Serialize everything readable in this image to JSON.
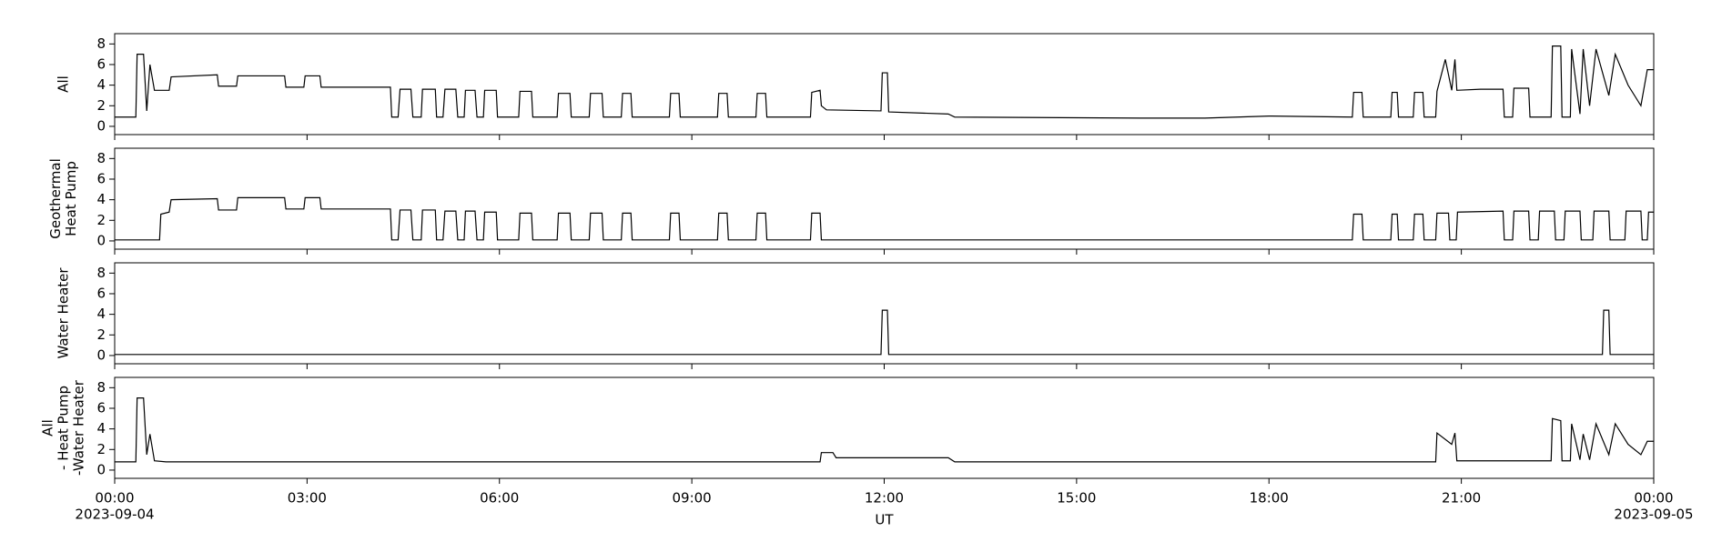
{
  "chart_data": [
    {
      "type": "line",
      "ylabel": [
        "All"
      ],
      "color": "#000000",
      "ylim": [
        -0.8,
        9
      ],
      "yticks": [
        0,
        2,
        4,
        6,
        8
      ],
      "xlim": [
        0,
        24
      ],
      "x": [
        0,
        0.33,
        0.35,
        0.45,
        0.5,
        0.55,
        0.62,
        0.85,
        0.88,
        1.6,
        1.62,
        1.9,
        1.92,
        2.65,
        2.67,
        2.95,
        2.97,
        3.2,
        3.22,
        4.3,
        4.32,
        4.42,
        4.45,
        4.62,
        4.65,
        4.78,
        4.8,
        5.0,
        5.02,
        5.12,
        5.15,
        5.32,
        5.35,
        5.45,
        5.47,
        5.62,
        5.65,
        5.75,
        5.77,
        5.95,
        5.97,
        6.3,
        6.32,
        6.5,
        6.52,
        6.9,
        6.92,
        7.1,
        7.12,
        7.4,
        7.42,
        7.6,
        7.62,
        7.9,
        7.92,
        8.05,
        8.07,
        8.65,
        8.67,
        8.8,
        8.82,
        9.4,
        9.42,
        9.55,
        9.57,
        10.0,
        10.02,
        10.15,
        10.17,
        10.85,
        10.87,
        11.0,
        11.02,
        11.1,
        11.95,
        11.97,
        12.05,
        12.07,
        13.0,
        13.1,
        16,
        17,
        18,
        19.3,
        19.32,
        19.45,
        19.47,
        19.9,
        19.92,
        20.0,
        20.02,
        20.25,
        20.27,
        20.4,
        20.42,
        20.6,
        20.62,
        20.75,
        20.85,
        20.9,
        20.93,
        21.3,
        21.65,
        21.67,
        21.8,
        21.82,
        22.05,
        22.07,
        22.4,
        22.42,
        22.55,
        22.57,
        22.7,
        22.72,
        22.85,
        22.9,
        23.0,
        23.1,
        23.3,
        23.4,
        23.6,
        23.8,
        23.9,
        24
      ],
      "values": [
        0.9,
        0.9,
        7,
        7,
        1.5,
        6,
        3.5,
        3.5,
        4.8,
        5,
        3.9,
        3.9,
        4.9,
        4.9,
        3.8,
        3.8,
        4.9,
        4.9,
        3.8,
        3.8,
        0.9,
        0.9,
        3.6,
        3.6,
        0.9,
        0.9,
        3.6,
        3.6,
        0.9,
        0.9,
        3.6,
        3.6,
        0.9,
        0.9,
        3.5,
        3.5,
        0.9,
        0.9,
        3.5,
        3.5,
        0.9,
        0.9,
        3.4,
        3.4,
        0.9,
        0.9,
        3.2,
        3.2,
        0.9,
        0.9,
        3.2,
        3.2,
        0.9,
        0.9,
        3.2,
        3.2,
        0.9,
        0.9,
        3.2,
        3.2,
        0.9,
        0.9,
        3.2,
        3.2,
        0.9,
        0.9,
        3.2,
        3.2,
        0.9,
        0.9,
        3.3,
        3.5,
        2,
        1.6,
        1.5,
        5.2,
        5.2,
        1.4,
        1.2,
        0.9,
        0.8,
        0.8,
        1,
        0.9,
        3.3,
        3.3,
        0.9,
        0.9,
        3.3,
        3.3,
        0.9,
        0.9,
        3.3,
        3.3,
        0.9,
        0.9,
        3.4,
        6.5,
        3.5,
        6.5,
        3.5,
        3.6,
        3.6,
        0.9,
        0.9,
        3.7,
        3.7,
        0.9,
        0.9,
        7.8,
        7.8,
        0.9,
        0.9,
        7.5,
        1.2,
        7.5,
        2,
        7.5,
        3,
        7,
        4,
        2,
        5.5,
        5.5
      ]
    },
    {
      "type": "line",
      "ylabel": [
        "Geothermal",
        "Heat Pump"
      ],
      "color": "#000000",
      "ylim": [
        -0.8,
        9
      ],
      "yticks": [
        0,
        2,
        4,
        6,
        8
      ],
      "xlim": [
        0,
        24
      ],
      "x": [
        0,
        0.7,
        0.72,
        0.85,
        0.88,
        1.6,
        1.62,
        1.9,
        1.92,
        2.65,
        2.67,
        2.95,
        2.97,
        3.2,
        3.22,
        4.3,
        4.32,
        4.42,
        4.45,
        4.62,
        4.65,
        4.78,
        4.8,
        5.0,
        5.02,
        5.12,
        5.15,
        5.32,
        5.35,
        5.45,
        5.47,
        5.62,
        5.65,
        5.75,
        5.77,
        5.95,
        5.97,
        6.3,
        6.32,
        6.5,
        6.52,
        6.9,
        6.92,
        7.1,
        7.12,
        7.4,
        7.42,
        7.6,
        7.62,
        7.9,
        7.92,
        8.05,
        8.07,
        8.65,
        8.67,
        8.8,
        8.82,
        9.4,
        9.42,
        9.55,
        9.57,
        10.0,
        10.02,
        10.15,
        10.17,
        10.85,
        10.87,
        11.0,
        11.02,
        19.3,
        19.32,
        19.45,
        19.47,
        19.9,
        19.92,
        20.0,
        20.02,
        20.25,
        20.27,
        20.4,
        20.42,
        20.6,
        20.62,
        20.8,
        20.82,
        20.92,
        20.94,
        21.65,
        21.67,
        21.8,
        21.82,
        22.05,
        22.07,
        22.2,
        22.22,
        22.45,
        22.47,
        22.6,
        22.62,
        22.85,
        22.87,
        23.05,
        23.07,
        23.3,
        23.32,
        23.55,
        23.57,
        23.8,
        23.82,
        23.9,
        23.92,
        24
      ],
      "values": [
        0.1,
        0.1,
        2.6,
        2.8,
        4,
        4.1,
        3,
        3,
        4.2,
        4.2,
        3.1,
        3.1,
        4.2,
        4.2,
        3.1,
        3.1,
        0.1,
        0.1,
        3,
        3,
        0.1,
        0.1,
        3,
        3,
        0.1,
        0.1,
        2.9,
        2.9,
        0.1,
        0.1,
        2.9,
        2.9,
        0.1,
        0.1,
        2.8,
        2.8,
        0.1,
        0.1,
        2.7,
        2.7,
        0.1,
        0.1,
        2.7,
        2.7,
        0.1,
        0.1,
        2.7,
        2.7,
        0.1,
        0.1,
        2.7,
        2.7,
        0.1,
        0.1,
        2.7,
        2.7,
        0.1,
        0.1,
        2.7,
        2.7,
        0.1,
        0.1,
        2.7,
        2.7,
        0.1,
        0.1,
        2.7,
        2.7,
        0.1,
        0.1,
        2.6,
        2.6,
        0.1,
        0.1,
        2.6,
        2.6,
        0.1,
        0.1,
        2.6,
        2.6,
        0.1,
        0.1,
        2.7,
        2.7,
        0.1,
        0.1,
        2.8,
        2.9,
        0.1,
        0.1,
        2.9,
        2.9,
        0.1,
        0.1,
        2.9,
        2.9,
        0.1,
        0.1,
        2.9,
        2.9,
        0.1,
        0.1,
        2.9,
        2.9,
        0.1,
        0.1,
        2.9,
        2.9,
        0.1,
        0.1,
        2.8,
        2.8
      ]
    },
    {
      "type": "line",
      "ylabel": [
        "Water Heater"
      ],
      "color": "#000000",
      "ylim": [
        -0.8,
        9
      ],
      "yticks": [
        0,
        2,
        4,
        6,
        8
      ],
      "xlim": [
        0,
        24
      ],
      "x": [
        0,
        11.95,
        11.97,
        12.05,
        12.07,
        23.2,
        23.22,
        23.3,
        23.32,
        24
      ],
      "values": [
        0.1,
        0.1,
        4.4,
        4.4,
        0.1,
        0.1,
        4.4,
        4.4,
        0.1,
        0.1
      ]
    },
    {
      "type": "line",
      "ylabel": [
        "All",
        " - Heat Pump",
        "-Water Heater"
      ],
      "color": "#000000",
      "ylim": [
        -0.8,
        9
      ],
      "yticks": [
        0,
        2,
        4,
        6,
        8
      ],
      "xlim": [
        0,
        24
      ],
      "x_label": "UT",
      "xticks": [
        {
          "value": 0,
          "label": "00:00"
        },
        {
          "value": 3,
          "label": "03:00"
        },
        {
          "value": 6,
          "label": "06:00"
        },
        {
          "value": 9,
          "label": "09:00"
        },
        {
          "value": 12,
          "label": "12:00"
        },
        {
          "value": 15,
          "label": "15:00"
        },
        {
          "value": 18,
          "label": "18:00"
        },
        {
          "value": 21,
          "label": "21:00"
        },
        {
          "value": 24,
          "label": "00:00"
        }
      ],
      "date_labels": [
        {
          "value": 0,
          "label": "2023-09-04"
        },
        {
          "value": 24,
          "label": "2023-09-05"
        }
      ],
      "x": [
        0,
        0.33,
        0.35,
        0.45,
        0.5,
        0.55,
        0.62,
        0.8,
        11,
        11.02,
        11.2,
        11.25,
        13,
        13.1,
        20.6,
        20.62,
        20.85,
        20.9,
        20.93,
        22.4,
        22.42,
        22.55,
        22.57,
        22.7,
        22.72,
        22.85,
        22.9,
        23,
        23.1,
        23.3,
        23.4,
        23.6,
        23.8,
        23.9,
        24
      ],
      "values": [
        0.8,
        0.8,
        7,
        7,
        1.5,
        3.5,
        0.9,
        0.8,
        0.8,
        1.7,
        1.7,
        1.2,
        1.2,
        0.8,
        0.8,
        3.6,
        2.5,
        3.6,
        0.9,
        0.9,
        5,
        4.8,
        0.9,
        0.9,
        4.5,
        1,
        3.5,
        1,
        4.5,
        1.5,
        4.5,
        2.5,
        1.5,
        2.8,
        2.8
      ]
    }
  ]
}
